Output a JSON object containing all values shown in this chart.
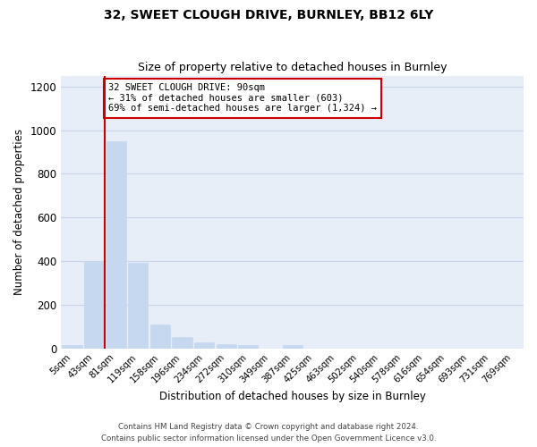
{
  "title1": "32, SWEET CLOUGH DRIVE, BURNLEY, BB12 6LY",
  "title2": "Size of property relative to detached houses in Burnley",
  "xlabel": "Distribution of detached houses by size in Burnley",
  "ylabel": "Number of detached properties",
  "footnote1": "Contains HM Land Registry data © Crown copyright and database right 2024.",
  "footnote2": "Contains public sector information licensed under the Open Government Licence v3.0.",
  "annotation_line1": "32 SWEET CLOUGH DRIVE: 90sqm",
  "annotation_line2": "← 31% of detached houses are smaller (603)",
  "annotation_line3": "69% of semi-detached houses are larger (1,324) →",
  "bar_color": "#c5d8f0",
  "highlight_line_color": "#cc0000",
  "annotation_box_edgecolor": "#cc0000",
  "grid_color": "#c8d4e8",
  "bg_color": "#e8eef8",
  "categories": [
    "5sqm",
    "43sqm",
    "81sqm",
    "119sqm",
    "158sqm",
    "196sqm",
    "234sqm",
    "272sqm",
    "310sqm",
    "349sqm",
    "387sqm",
    "425sqm",
    "463sqm",
    "502sqm",
    "540sqm",
    "578sqm",
    "616sqm",
    "654sqm",
    "693sqm",
    "731sqm",
    "769sqm"
  ],
  "values": [
    15,
    395,
    950,
    390,
    110,
    52,
    25,
    18,
    13,
    0,
    15,
    0,
    0,
    0,
    0,
    0,
    0,
    0,
    0,
    0,
    0
  ],
  "property_bin_index": 2,
  "ylim": [
    0,
    1250
  ],
  "yticks": [
    0,
    200,
    400,
    600,
    800,
    1000,
    1200
  ]
}
